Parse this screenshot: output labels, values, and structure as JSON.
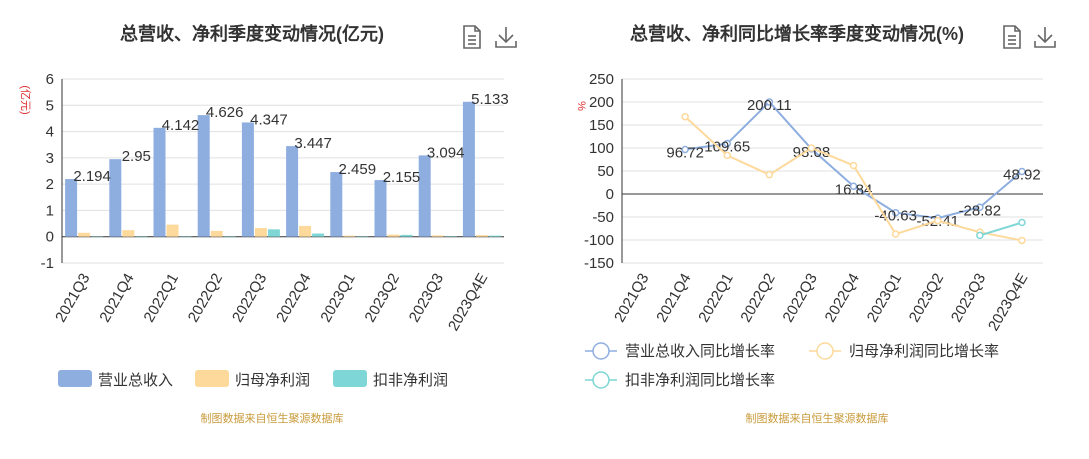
{
  "chart_data": [
    {
      "type": "bar",
      "title": "总营收、净利季度变动情况(亿元)",
      "ylabel": "(亿元)",
      "xlabel": "",
      "ylim": [
        -1,
        6
      ],
      "yticks": [
        -1,
        0,
        1,
        2,
        3,
        4,
        5,
        6
      ],
      "grid": true,
      "legend_position": "bottom",
      "categories": [
        "2021Q3",
        "2021Q4",
        "2022Q1",
        "2022Q2",
        "2022Q3",
        "2022Q4",
        "2023Q1",
        "2023Q2",
        "2023Q3",
        "2023Q4E"
      ],
      "series": [
        {
          "name": "营业总收入",
          "color": "#8eaee0",
          "values": [
            2.194,
            2.95,
            4.142,
            4.626,
            4.347,
            3.447,
            2.459,
            2.155,
            3.094,
            5.133
          ],
          "labels": [
            "2.194",
            "2.95",
            "4.142",
            "4.626",
            "4.347",
            "3.447",
            "2.459",
            "2.155",
            "3.094",
            "5.133"
          ]
        },
        {
          "name": "归母净利润",
          "color": "#fdd99b",
          "values": [
            0.15,
            0.25,
            0.46,
            0.22,
            0.33,
            0.41,
            0.04,
            0.08,
            0.05,
            0.06
          ]
        },
        {
          "name": "扣非净利润",
          "color": "#7fd6d6",
          "values": [
            0.0,
            0.0,
            0.0,
            0.0,
            0.28,
            0.12,
            0.0,
            0.07,
            0.02,
            0.04
          ]
        }
      ],
      "source": "制图数据来自恒生聚源数据库"
    },
    {
      "type": "line",
      "title": "总营收、净利同比增长率季度变动情况(%)",
      "ylabel": "%",
      "xlabel": "",
      "ylim": [
        -150,
        250
      ],
      "yticks": [
        -150,
        -100,
        -50,
        0,
        50,
        100,
        150,
        200,
        250
      ],
      "grid": true,
      "legend_position": "bottom",
      "categories": [
        "2021Q3",
        "2021Q4",
        "2022Q1",
        "2022Q2",
        "2022Q3",
        "2022Q4",
        "2023Q1",
        "2023Q2",
        "2023Q3",
        "2023Q4E"
      ],
      "series": [
        {
          "name": "营业总收入同比增长率",
          "color": "#8eaee0",
          "values": [
            null,
            96.72,
            109.65,
            200.11,
            98.08,
            16.84,
            -40.63,
            -52.41,
            -28.82,
            48.92
          ],
          "labels": [
            "",
            "96.72",
            "109.65",
            "200.11",
            "98.08",
            "16.84",
            "-40.63",
            "-52.41",
            "-28.82",
            "48.92"
          ]
        },
        {
          "name": "归母净利润同比增长率",
          "color": "#fdd99b",
          "values": [
            null,
            168,
            84,
            42,
            100,
            62,
            -87,
            -58,
            -83,
            -101
          ]
        },
        {
          "name": "扣非净利润同比增长率",
          "color": "#7fd6d6",
          "values": [
            null,
            null,
            null,
            null,
            null,
            null,
            null,
            null,
            -90,
            -62
          ]
        }
      ],
      "source": "制图数据来自恒生聚源数据库"
    }
  ],
  "icons": {
    "data_view": "document-icon",
    "download": "download-icon"
  }
}
